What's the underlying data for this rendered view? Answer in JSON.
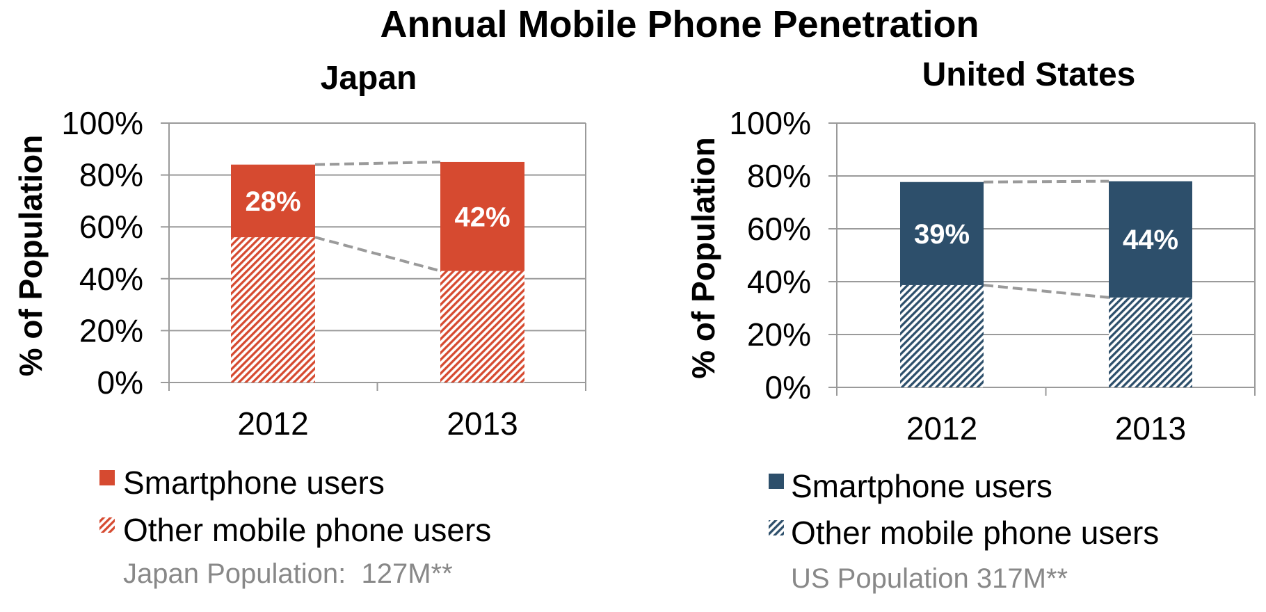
{
  "title": "Annual Mobile Phone Penetration",
  "colors": {
    "japan": "#d64a30",
    "us": "#2d4f6b",
    "grid": "#9a9a9a",
    "connector": "#9a9a9a",
    "footer": "#888888"
  },
  "chart_data": [
    {
      "type": "bar",
      "stacked": true,
      "title": "Japan",
      "xlabel": "",
      "ylabel": "% of Population",
      "categories": [
        "2012",
        "2013"
      ],
      "ylim": [
        0,
        100
      ],
      "yticks": [
        0,
        20,
        40,
        60,
        80,
        100
      ],
      "ytick_labels": [
        "0%",
        "20%",
        "40%",
        "60%",
        "80%",
        "100%"
      ],
      "grid": true,
      "color_key": "japan",
      "series": [
        {
          "name": "Other mobile phone users",
          "pattern": "hatched",
          "values": [
            56,
            43
          ]
        },
        {
          "name": "Smartphone users",
          "pattern": "solid",
          "values": [
            28,
            42
          ],
          "data_labels": [
            "28%",
            "42%"
          ]
        }
      ],
      "connector_lines": "dashed",
      "legend": [
        "Smartphone users",
        "Other mobile phone users"
      ],
      "legend_placement": "bottom",
      "footnote": "Japan Population:  127M**"
    },
    {
      "type": "bar",
      "stacked": true,
      "title": "United States",
      "xlabel": "",
      "ylabel": "% of Population",
      "categories": [
        "2012",
        "2013"
      ],
      "ylim": [
        0,
        100
      ],
      "yticks": [
        0,
        20,
        40,
        60,
        80,
        100
      ],
      "ytick_labels": [
        "0%",
        "20%",
        "40%",
        "60%",
        "80%",
        "100%"
      ],
      "grid": true,
      "color_key": "us",
      "series": [
        {
          "name": "Other mobile phone users",
          "pattern": "hatched",
          "values": [
            38.7,
            34
          ]
        },
        {
          "name": "Smartphone users",
          "pattern": "solid",
          "values": [
            39,
            44
          ],
          "data_labels": [
            "39%",
            "44%"
          ]
        }
      ],
      "connector_lines": "dashed",
      "legend": [
        "Smartphone users",
        "Other mobile phone users"
      ],
      "legend_placement": "bottom",
      "footnote": "US Population 317M**"
    }
  ]
}
